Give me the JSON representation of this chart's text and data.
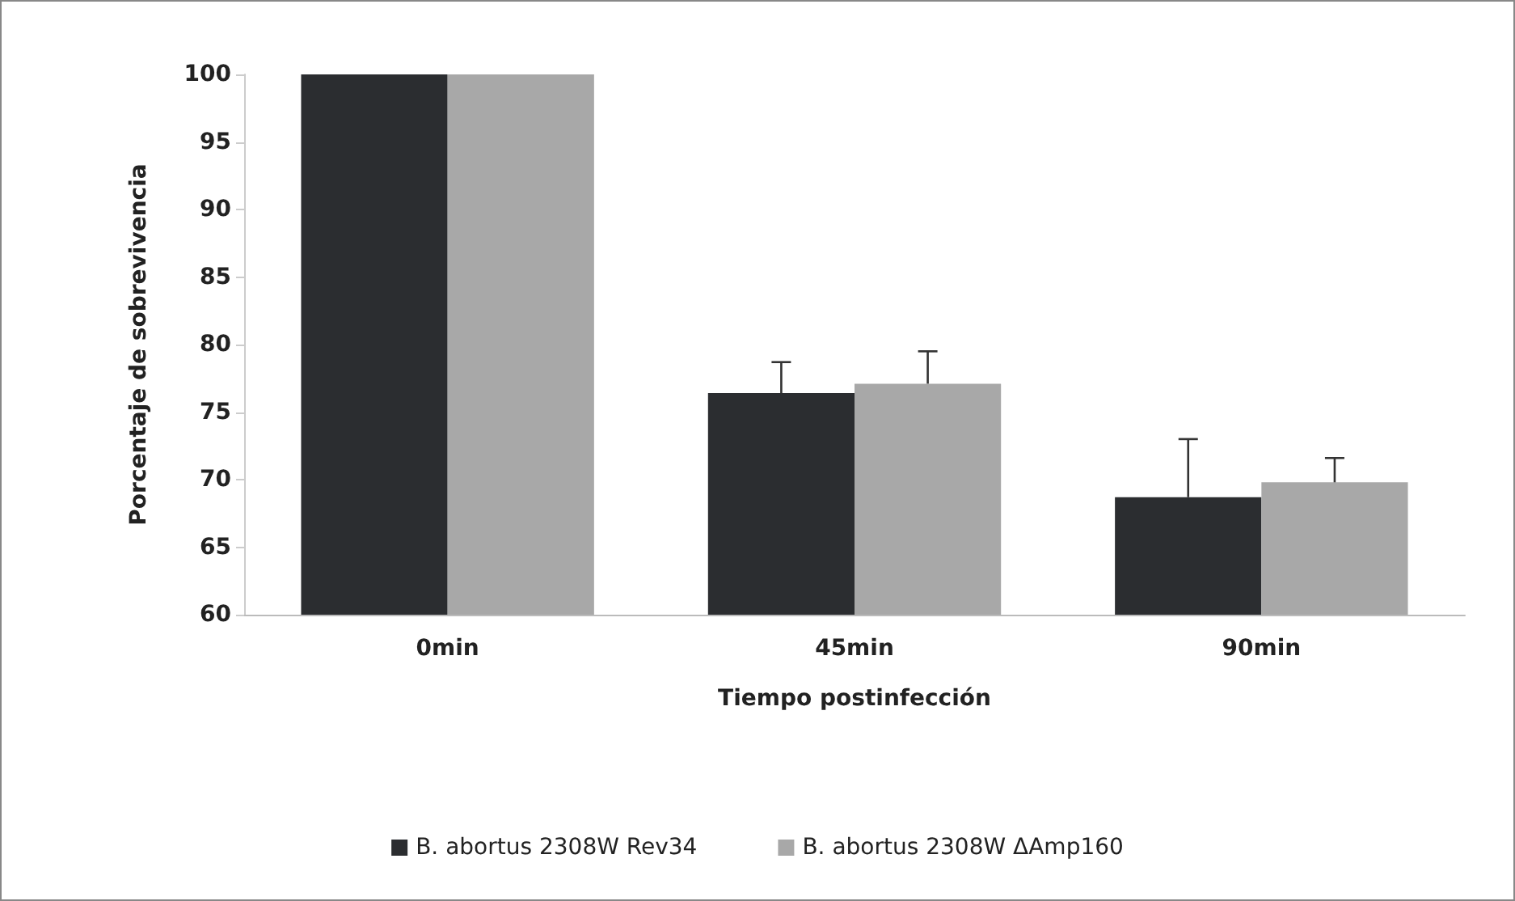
{
  "chart_data": {
    "type": "bar",
    "xlabel": "Tiempo postinfección",
    "ylabel": "Porcentaje de sobrevivencia",
    "categories": [
      "0min",
      "45min",
      "90min"
    ],
    "series": [
      {
        "name": "B. abortus 2308W Rev34",
        "color": "#2b2d30",
        "values": [
          100,
          76.4,
          68.7
        ],
        "errors": [
          null,
          [
            76.4,
            78.7
          ],
          [
            68.7,
            73.0
          ]
        ]
      },
      {
        "name": "B. abortus 2308W ΔAmp160",
        "color": "#a8a8a8",
        "values": [
          100,
          77.1,
          69.8
        ],
        "errors": [
          null,
          [
            77.1,
            79.5
          ],
          [
            69.8,
            71.6
          ]
        ]
      }
    ],
    "ylim": [
      60,
      100
    ],
    "yticks": [
      60,
      65,
      70,
      75,
      80,
      85,
      90,
      95,
      100
    ],
    "grid": false,
    "legend": "bottom"
  }
}
